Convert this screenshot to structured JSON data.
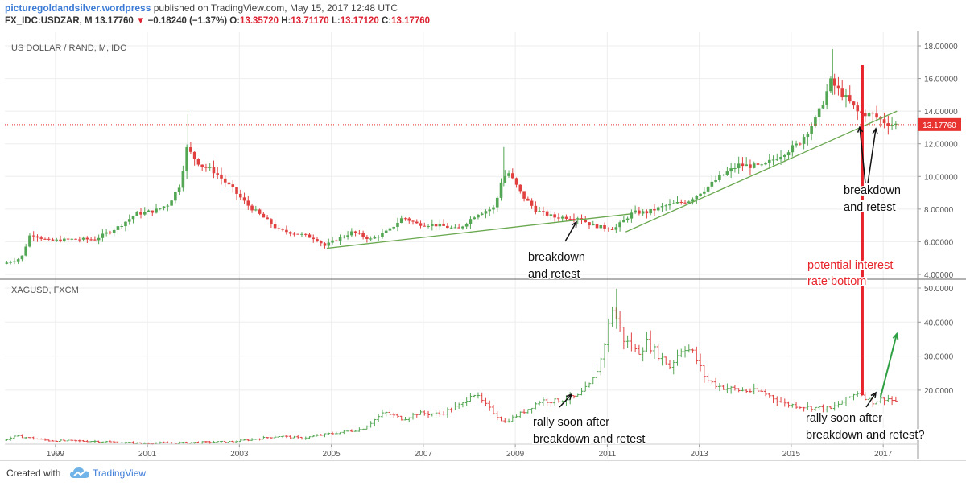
{
  "header": {
    "brand": "picturegoldandsilver.wordpress",
    "published": "published on TradingView.com, May 15, 2017 12:48 UTC",
    "symbol": "FX_IDC:USDZAR, M",
    "last": "13.17760",
    "down_arrow": "▼",
    "change": "−0.18240 (−1.37%)",
    "o_label": "O:",
    "o_value": "13.35720",
    "h_label": "H:",
    "h_value": "13.71170",
    "l_label": "L:",
    "l_value": "13.17120",
    "c_label": "C:",
    "c_value": "13.17760"
  },
  "footer": {
    "created_with": "Created with",
    "tradingview": "TradingView"
  },
  "colors": {
    "up": "#53a653",
    "down": "#e04040",
    "trendline": "#6aa84f",
    "redline": "#e8232a",
    "arrow_green": "#2ea043",
    "price_label_bg": "#e8322f"
  },
  "chart_data": [
    {
      "type": "candlestick",
      "title": "US DOLLAR / RAND, M, IDC",
      "ylim": [
        4,
        18
      ],
      "y_ticks": [
        "4.00000",
        "6.00000",
        "8.00000",
        "10.00000",
        "12.00000",
        "14.00000",
        "16.00000",
        "18.00000"
      ],
      "last_price": "13.17760",
      "x_ticks": [
        "1999",
        "2001",
        "2003",
        "2005",
        "2007",
        "2009",
        "2011",
        "2013",
        "2015",
        "2017"
      ],
      "series_points": [
        [
          1998.0,
          4.65
        ],
        [
          1998.4,
          5.0
        ],
        [
          1998.6,
          6.5
        ],
        [
          1999.0,
          6.05
        ],
        [
          1999.5,
          6.15
        ],
        [
          2000.0,
          6.15
        ],
        [
          2000.5,
          6.9
        ],
        [
          2000.9,
          7.7
        ],
        [
          2001.3,
          7.9
        ],
        [
          2001.6,
          8.3
        ],
        [
          2001.85,
          9.5
        ],
        [
          2002.0,
          11.7
        ],
        [
          2002.3,
          10.7
        ],
        [
          2002.6,
          10.3
        ],
        [
          2003.0,
          9.2
        ],
        [
          2003.3,
          8.3
        ],
        [
          2003.7,
          7.4
        ],
        [
          2004.0,
          6.7
        ],
        [
          2004.4,
          6.5
        ],
        [
          2004.8,
          6.2
        ],
        [
          2005.0,
          5.75
        ],
        [
          2005.3,
          6.2
        ],
        [
          2005.6,
          6.6
        ],
        [
          2006.0,
          6.15
        ],
        [
          2006.4,
          6.7
        ],
        [
          2006.7,
          7.5
        ],
        [
          2007.0,
          7.1
        ],
        [
          2007.5,
          7.0
        ],
        [
          2007.9,
          6.75
        ],
        [
          2008.3,
          7.7
        ],
        [
          2008.7,
          8.1
        ],
        [
          2008.85,
          9.9
        ],
        [
          2009.0,
          10.2
        ],
        [
          2009.3,
          8.8
        ],
        [
          2009.6,
          7.9
        ],
        [
          2010.0,
          7.5
        ],
        [
          2010.5,
          7.5
        ],
        [
          2010.8,
          7.0
        ],
        [
          2011.0,
          6.9
        ],
        [
          2011.3,
          6.8
        ],
        [
          2011.7,
          7.8
        ],
        [
          2012.0,
          7.8
        ],
        [
          2012.4,
          8.2
        ],
        [
          2012.9,
          8.5
        ],
        [
          2013.3,
          9.3
        ],
        [
          2013.6,
          10.0
        ],
        [
          2014.0,
          10.7
        ],
        [
          2014.5,
          10.6
        ],
        [
          2014.9,
          11.3
        ],
        [
          2015.3,
          12.0
        ],
        [
          2015.7,
          13.6
        ],
        [
          2016.0,
          15.8
        ],
        [
          2016.3,
          14.9
        ],
        [
          2016.6,
          13.9
        ],
        [
          2016.9,
          13.8
        ],
        [
          2017.0,
          13.6
        ],
        [
          2017.2,
          13.3
        ],
        [
          2017.37,
          13.18
        ]
      ],
      "trendlines": [
        [
          [
            2005.0,
            5.6
          ],
          [
            2011.6,
            7.7
          ]
        ],
        [
          [
            2011.5,
            6.6
          ],
          [
            2017.4,
            14.0
          ]
        ]
      ],
      "annotations": [
        {
          "lines": [
            "breakdown",
            "and retest"
          ],
          "year": 2010.2,
          "value": 4.5
        },
        {
          "lines": [
            "breakdown",
            "and retest"
          ],
          "year": 2017.2,
          "value": 8.9
        }
      ]
    },
    {
      "type": "ohlc",
      "title": "XAGUSD, FXCM",
      "ylim": [
        11,
        50
      ],
      "y_ticks": [
        "20.0000",
        "30.0000",
        "40.0000",
        "50.0000"
      ],
      "x_ticks": [
        "1999",
        "2001",
        "2003",
        "2005",
        "2007",
        "2009",
        "2011",
        "2013",
        "2015",
        "2017"
      ],
      "series_points": [
        [
          1998.0,
          5.3
        ],
        [
          1998.3,
          6.5
        ],
        [
          1999.0,
          5.2
        ],
        [
          2000.0,
          5.0
        ],
        [
          2001.0,
          4.4
        ],
        [
          2002.0,
          4.6
        ],
        [
          2003.0,
          4.9
        ],
        [
          2004.0,
          6.5
        ],
        [
          2004.5,
          5.9
        ],
        [
          2005.0,
          7.0
        ],
        [
          2005.8,
          8.5
        ],
        [
          2006.3,
          13.5
        ],
        [
          2006.7,
          11.5
        ],
        [
          2007.0,
          13.2
        ],
        [
          2007.5,
          13.0
        ],
        [
          2008.0,
          16.0
        ],
        [
          2008.2,
          19.5
        ],
        [
          2008.7,
          13.0
        ],
        [
          2008.9,
          10.5
        ],
        [
          2009.3,
          13.5
        ],
        [
          2009.7,
          17.0
        ],
        [
          2010.0,
          16.8
        ],
        [
          2010.5,
          18.2
        ],
        [
          2010.8,
          22.0
        ],
        [
          2011.0,
          29.0
        ],
        [
          2011.25,
          44.0
        ],
        [
          2011.5,
          35.0
        ],
        [
          2011.8,
          31.0
        ],
        [
          2012.0,
          34.0
        ],
        [
          2012.5,
          27.0
        ],
        [
          2012.8,
          33.0
        ],
        [
          2013.0,
          31.0
        ],
        [
          2013.3,
          23.0
        ],
        [
          2013.6,
          21.0
        ],
        [
          2014.0,
          20.0
        ],
        [
          2014.5,
          19.5
        ],
        [
          2015.0,
          16.0
        ],
        [
          2015.5,
          15.0
        ],
        [
          2016.0,
          14.5
        ],
        [
          2016.6,
          19.5
        ],
        [
          2016.9,
          16.5
        ],
        [
          2017.2,
          17.8
        ],
        [
          2017.37,
          16.8
        ]
      ],
      "annotations": [
        {
          "lines": [
            "rally soon after",
            "breakdown and retest"
          ],
          "year": 2010.2,
          "value": 8.5
        },
        {
          "lines": [
            "rally soon after",
            "breakdown and retest?"
          ],
          "year": 2017.0,
          "value": 8.5
        }
      ]
    }
  ],
  "red_line": {
    "year": 2016.65,
    "label_lines": [
      "potential interest",
      "rate bottom"
    ]
  }
}
